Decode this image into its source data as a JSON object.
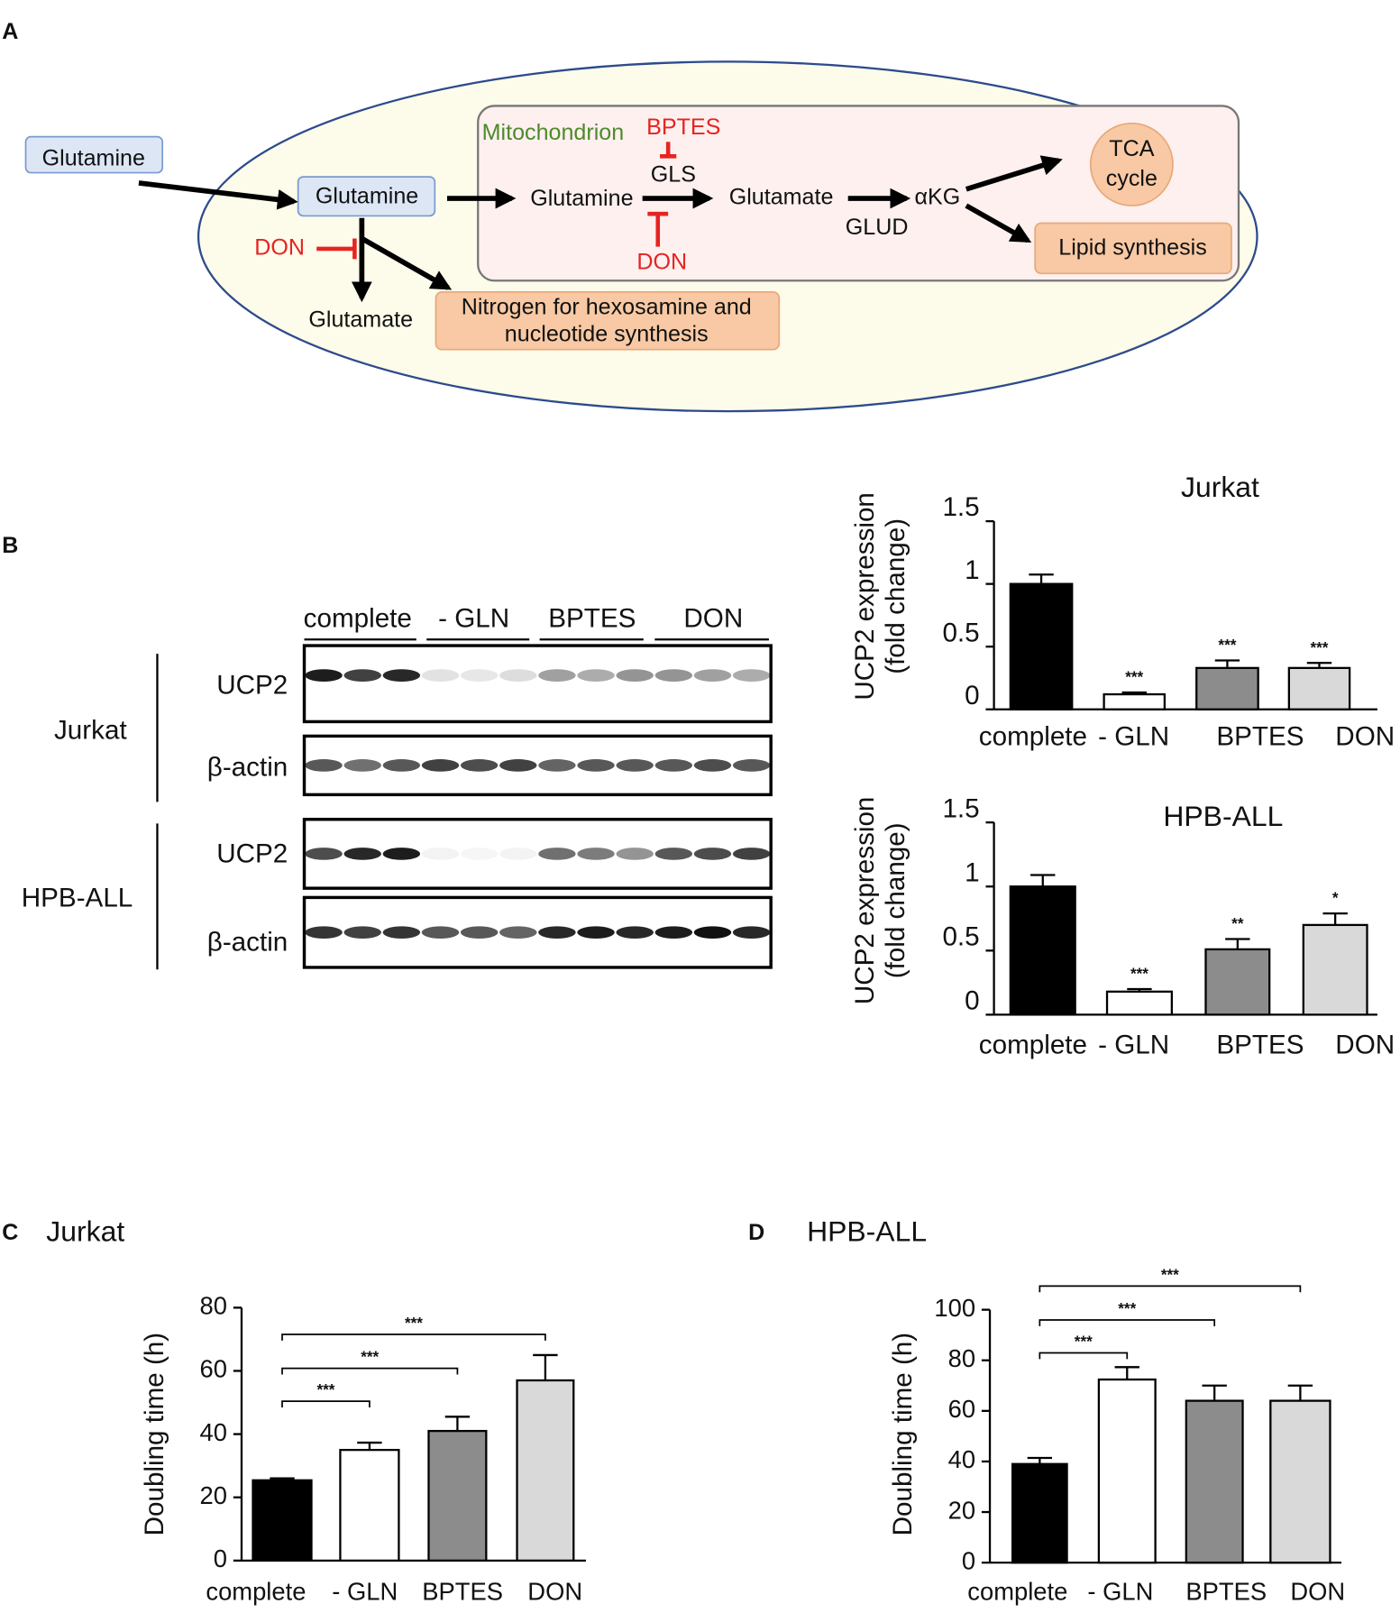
{
  "panel_labels": [
    "A",
    "B",
    "C",
    "D"
  ],
  "diagram": {
    "nodes": [
      "Glutamine",
      "Glutamine",
      "Mitochondrion",
      "BPTES",
      "GLS",
      "Glutamine",
      "Glutamate",
      "αKG",
      "GLUD",
      "DON",
      "DON",
      "Glutamate",
      "TCA",
      "cycle",
      "Lipid synthesis",
      "Nitrogen for hexosamine and",
      "nucleotide synthesis"
    ]
  },
  "blot": {
    "lanes": [
      "complete",
      "- GLN",
      "BPTES",
      "DON"
    ],
    "cell_lines": [
      {
        "name": "Jurkat",
        "bands": [
          "UCP2",
          "β-actin"
        ]
      },
      {
        "name": "HPB-ALL",
        "bands": [
          "UCP2",
          "β-actin"
        ]
      }
    ]
  },
  "chart_data": [
    {
      "type": "bar",
      "title": "Jurkat",
      "ylabel": [
        "UCP2 expression",
        "(fold change)"
      ],
      "categories": [
        "complete",
        "- GLN",
        "BPTES",
        "DON"
      ],
      "values": [
        1.0,
        0.12,
        0.33,
        0.33
      ],
      "errors": [
        0.075,
        0.015,
        0.06,
        0.04
      ],
      "significance": [
        null,
        "***",
        "***",
        "***"
      ],
      "colors": [
        "#000000",
        "#ffffff",
        "#8c8c8c",
        "#d9d9d9"
      ],
      "ylim": [
        0,
        1.5
      ],
      "yticks": [
        0,
        0.5,
        1,
        1.5
      ]
    },
    {
      "type": "bar",
      "title": "HPB-ALL",
      "ylabel": [
        "UCP2 expression",
        "(fold change)"
      ],
      "categories": [
        "complete",
        "- GLN",
        "BPTES",
        "DON"
      ],
      "values": [
        1.0,
        0.18,
        0.51,
        0.7
      ],
      "errors": [
        0.09,
        0.02,
        0.08,
        0.09
      ],
      "significance": [
        null,
        "***",
        "**",
        "*"
      ],
      "colors": [
        "#000000",
        "#ffffff",
        "#8c8c8c",
        "#d9d9d9"
      ],
      "ylim": [
        0,
        1.5
      ],
      "yticks": [
        0,
        0.5,
        1,
        1.5
      ]
    },
    {
      "type": "bar",
      "title": "Jurkat",
      "ylabel": [
        "Doubling time (h)"
      ],
      "categories": [
        "complete",
        "- GLN",
        "BPTES",
        "DON"
      ],
      "values": [
        25.4,
        35,
        41,
        57
      ],
      "errors": [
        0.6,
        2.3,
        4.5,
        8
      ],
      "comparisons": [
        "***",
        "***",
        "***"
      ],
      "colors": [
        "#000000",
        "#ffffff",
        "#8c8c8c",
        "#d9d9d9"
      ],
      "ylim": [
        0,
        80
      ],
      "yticks": [
        0,
        20,
        40,
        60,
        80
      ]
    },
    {
      "type": "bar",
      "title": "HPB-ALL",
      "ylabel": [
        "Doubling time (h)"
      ],
      "categories": [
        "complete",
        "- GLN",
        "BPTES",
        "DON"
      ],
      "values": [
        39,
        72.4,
        64,
        64
      ],
      "errors": [
        2.4,
        4.9,
        6,
        6
      ],
      "comparisons": [
        "***",
        "***",
        "***"
      ],
      "colors": [
        "#000000",
        "#ffffff",
        "#8c8c8c",
        "#d9d9d9"
      ],
      "ylim": [
        0,
        100
      ],
      "yticks": [
        0,
        20,
        40,
        60,
        80,
        100
      ]
    }
  ]
}
